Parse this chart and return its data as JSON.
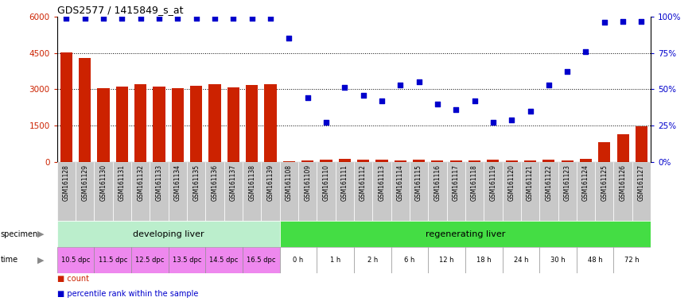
{
  "title": "GDS2577 / 1415849_s_at",
  "samples": [
    "GSM161128",
    "GSM161129",
    "GSM161130",
    "GSM161131",
    "GSM161132",
    "GSM161133",
    "GSM161134",
    "GSM161135",
    "GSM161136",
    "GSM161137",
    "GSM161138",
    "GSM161139",
    "GSM161108",
    "GSM161109",
    "GSM161110",
    "GSM161111",
    "GSM161112",
    "GSM161113",
    "GSM161114",
    "GSM161115",
    "GSM161116",
    "GSM161117",
    "GSM161118",
    "GSM161119",
    "GSM161120",
    "GSM161121",
    "GSM161122",
    "GSM161123",
    "GSM161124",
    "GSM161125",
    "GSM161126",
    "GSM161127"
  ],
  "counts": [
    4520,
    4280,
    3050,
    3100,
    3200,
    3100,
    3030,
    3150,
    3200,
    3080,
    3180,
    3200,
    15,
    60,
    80,
    130,
    70,
    90,
    60,
    80,
    55,
    60,
    55,
    70,
    65,
    60,
    90,
    60,
    120,
    800,
    1150,
    1480
  ],
  "percentiles": [
    99,
    99,
    99,
    99,
    99,
    99,
    99,
    99,
    99,
    99,
    99,
    99,
    85,
    44,
    27,
    51,
    46,
    42,
    53,
    55,
    40,
    36,
    42,
    27,
    29,
    35,
    53,
    62,
    76,
    96,
    97,
    97
  ],
  "ylim_left": [
    0,
    6000
  ],
  "ylim_right": [
    0,
    100
  ],
  "yticks_left": [
    0,
    1500,
    3000,
    4500,
    6000
  ],
  "yticks_right": [
    0,
    25,
    50,
    75,
    100
  ],
  "bar_color": "#CC2200",
  "dot_color": "#0000CC",
  "bg_color": "#FFFFFF",
  "xlabel_bg": "#C8C8C8",
  "specimen_groups": [
    {
      "label": "developing liver",
      "start": 0,
      "end": 12,
      "color": "#BBEECC"
    },
    {
      "label": "regenerating liver",
      "start": 12,
      "end": 32,
      "color": "#44DD44"
    }
  ],
  "time_labels": [
    {
      "label": "10.5 dpc",
      "start": 0,
      "end": 2
    },
    {
      "label": "11.5 dpc",
      "start": 2,
      "end": 4
    },
    {
      "label": "12.5 dpc",
      "start": 4,
      "end": 6
    },
    {
      "label": "13.5 dpc",
      "start": 6,
      "end": 8
    },
    {
      "label": "14.5 dpc",
      "start": 8,
      "end": 10
    },
    {
      "label": "16.5 dpc",
      "start": 10,
      "end": 12
    },
    {
      "label": "0 h",
      "start": 12,
      "end": 14
    },
    {
      "label": "1 h",
      "start": 14,
      "end": 16
    },
    {
      "label": "2 h",
      "start": 16,
      "end": 18
    },
    {
      "label": "6 h",
      "start": 18,
      "end": 20
    },
    {
      "label": "12 h",
      "start": 20,
      "end": 22
    },
    {
      "label": "18 h",
      "start": 22,
      "end": 24
    },
    {
      "label": "24 h",
      "start": 24,
      "end": 26
    },
    {
      "label": "30 h",
      "start": 26,
      "end": 28
    },
    {
      "label": "48 h",
      "start": 28,
      "end": 30
    },
    {
      "label": "72 h",
      "start": 30,
      "end": 32
    }
  ],
  "dpc_color": "#EE88EE",
  "hour_color": "#EE88EE",
  "bar_color_legend": "#CC2200",
  "dot_color_legend": "#0000CC",
  "specimen_label": "specimen",
  "time_label": "time",
  "arrow_color": "#888888"
}
